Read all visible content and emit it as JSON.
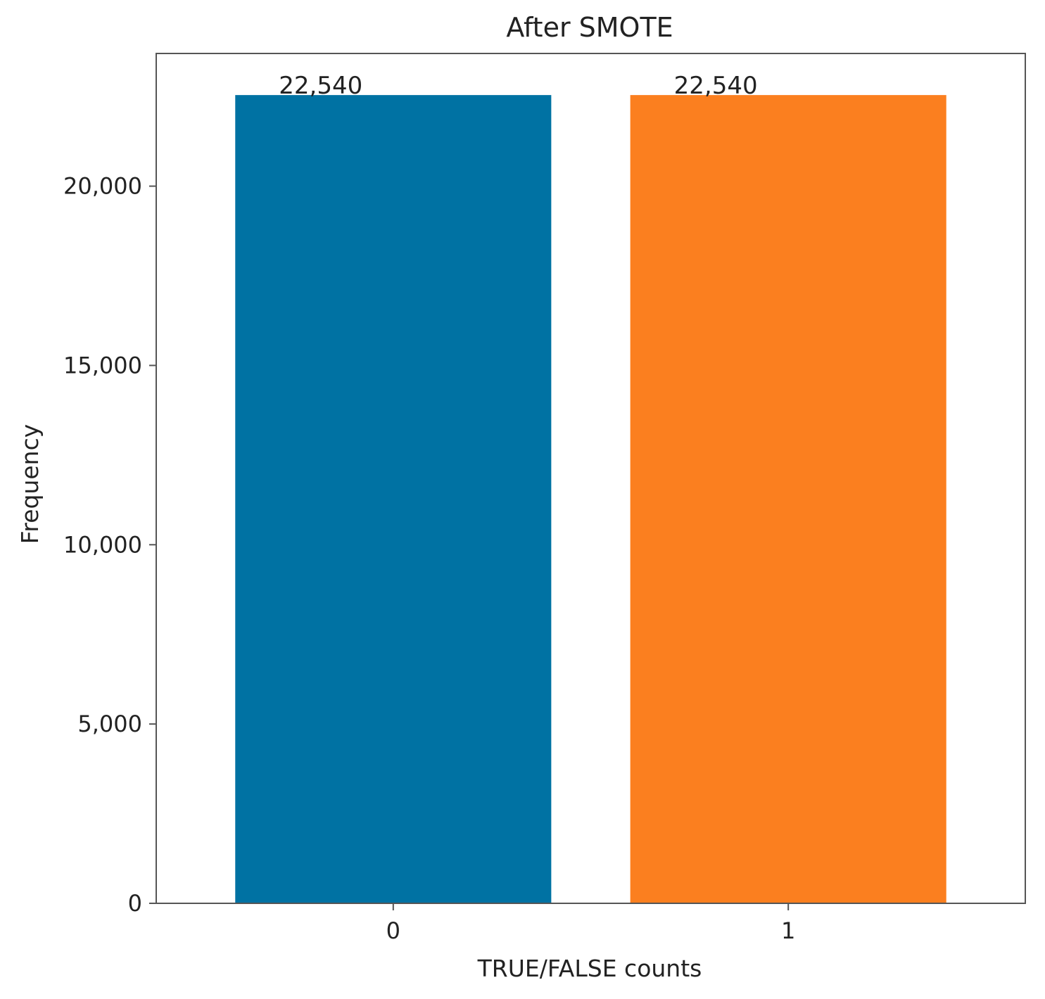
{
  "chart_data": {
    "type": "bar",
    "title": "After SMOTE",
    "xlabel": "TRUE/FALSE counts",
    "ylabel": "Frequency",
    "categories": [
      "0",
      "1"
    ],
    "values": [
      22540,
      22540
    ],
    "value_labels": [
      "22,540",
      "22,540"
    ],
    "colors": [
      "#0072a3",
      "#fb7f1f"
    ],
    "ylim": [
      0,
      23700
    ],
    "yticks": [
      0,
      5000,
      10000,
      15000,
      20000
    ],
    "ytick_labels": [
      "0",
      "5,000",
      "10,000",
      "15,000",
      "20,000"
    ],
    "grid": false,
    "legend": "none"
  }
}
